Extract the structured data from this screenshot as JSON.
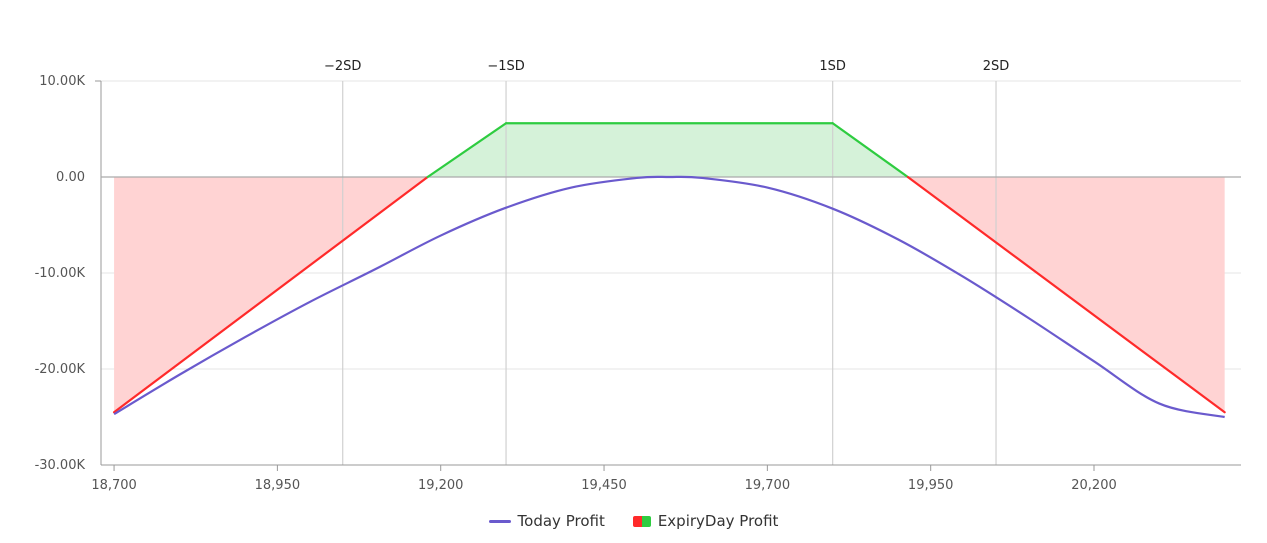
{
  "chart_data": {
    "type": "area",
    "x_range": [
      18700,
      20400
    ],
    "ylim": [
      -30000,
      10000
    ],
    "x_ticks": [
      18700,
      18950,
      19200,
      19450,
      19700,
      19950,
      20200
    ],
    "x_tick_labels": [
      "18,700",
      "18,950",
      "19,200",
      "19,450",
      "19,700",
      "19,950",
      "20,200"
    ],
    "y_ticks": [
      10000,
      0,
      -10000,
      -20000,
      -30000
    ],
    "y_tick_labels": [
      "10.00K",
      "0.00",
      "-10.00K",
      "-20.00K",
      "-30.00K"
    ],
    "grid": true,
    "legend_position": "bottom-center",
    "sd_markers": [
      {
        "label": "−2SD",
        "x": 19050
      },
      {
        "label": "−1SD",
        "x": 19300
      },
      {
        "label": "1SD",
        "x": 19800
      },
      {
        "label": "2SD",
        "x": 20050
      }
    ],
    "series": [
      {
        "name": "Today Profit",
        "type": "line",
        "color": "#6a5acd",
        "x": [
          18700,
          18800,
          18900,
          19000,
          19100,
          19200,
          19300,
          19400,
          19500,
          19550,
          19600,
          19700,
          19800,
          19900,
          20000,
          20100,
          20200,
          20300,
          20400
        ],
        "values": [
          -24700,
          -20600,
          -16700,
          -13000,
          -9600,
          -6100,
          -3200,
          -1100,
          -100,
          0,
          -100,
          -1100,
          -3300,
          -6500,
          -10400,
          -14700,
          -19200,
          -23600,
          -25000
        ]
      },
      {
        "name": "ExpiryDay Profit",
        "type": "area",
        "profit_color": "#2ecc40",
        "loss_color": "#ff2a2a",
        "profit_fill": "#d5f2d9",
        "loss_fill": "#ffd3d3",
        "x": [
          18700,
          19180,
          19300,
          19800,
          19915,
          20400
        ],
        "values": [
          -24500,
          0,
          5600,
          5600,
          0,
          -24500
        ]
      }
    ]
  },
  "colors": {
    "axis": "#999999",
    "grid": "#e6e6e6",
    "sd_line": "#d0d0d0",
    "zero_line": "#aaaaaa"
  }
}
